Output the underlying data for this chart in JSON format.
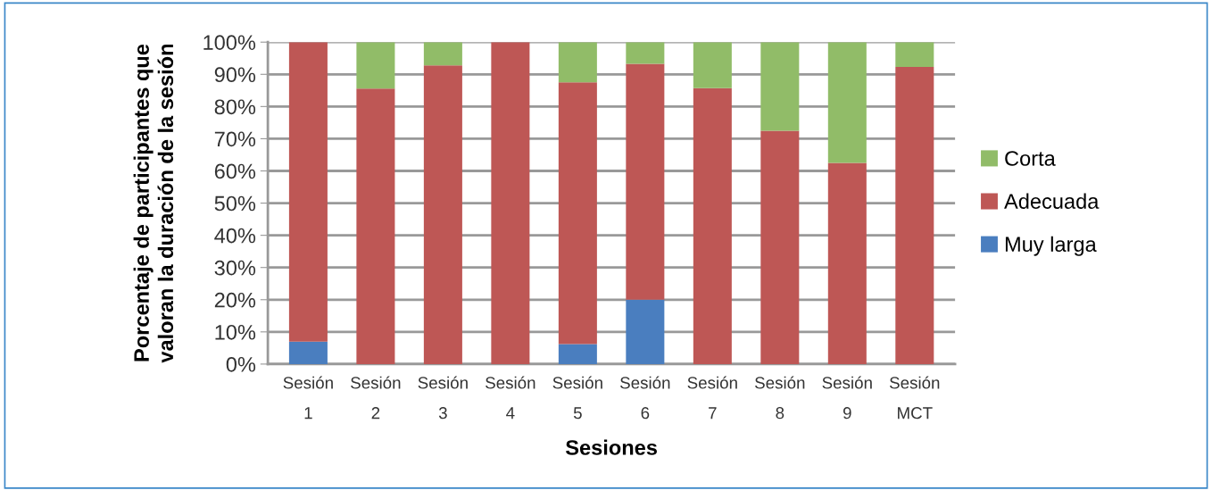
{
  "chart_data": {
    "type": "bar",
    "stacked": true,
    "xlabel": "Sesiones",
    "ylabel": "Porcentaje de participantes que\nvaloran la duración de la sesión",
    "categories": [
      "Sesión\n1",
      "Sesión\n2",
      "Sesión\n3",
      "Sesión\n4",
      "Sesión\n5",
      "Sesión\n6",
      "Sesión\n7",
      "Sesión\n8",
      "Sesión\n9",
      "Sesión\nMCT"
    ],
    "series": [
      {
        "name": "Muy larga",
        "color": "#4a7ebf",
        "values": [
          7,
          0,
          0,
          0,
          6.2,
          20,
          0,
          0,
          0,
          0
        ]
      },
      {
        "name": "Adecuada",
        "color": "#be5755",
        "values": [
          93,
          85.6,
          92.8,
          100,
          81.3,
          73.3,
          85.7,
          72.5,
          62.5,
          92.3
        ]
      },
      {
        "name": "Corta",
        "color": "#91bc68",
        "values": [
          0,
          14.4,
          7.2,
          0,
          12.5,
          6.7,
          14.3,
          27.5,
          37.5,
          7.7
        ]
      }
    ],
    "ylim": [
      0,
      100
    ],
    "yticks": [
      {
        "value": 0,
        "label": "0%"
      },
      {
        "value": 10,
        "label": "10%"
      },
      {
        "value": 20,
        "label": "20%"
      },
      {
        "value": 30,
        "label": "30%"
      },
      {
        "value": 40,
        "label": "40%"
      },
      {
        "value": 50,
        "label": "50%"
      },
      {
        "value": 60,
        "label": "60%"
      },
      {
        "value": 70,
        "label": "70%"
      },
      {
        "value": 80,
        "label": "80%"
      },
      {
        "value": 90,
        "label": "90%"
      },
      {
        "value": 100,
        "label": "100%"
      }
    ],
    "grid": "y",
    "legend": "right"
  }
}
